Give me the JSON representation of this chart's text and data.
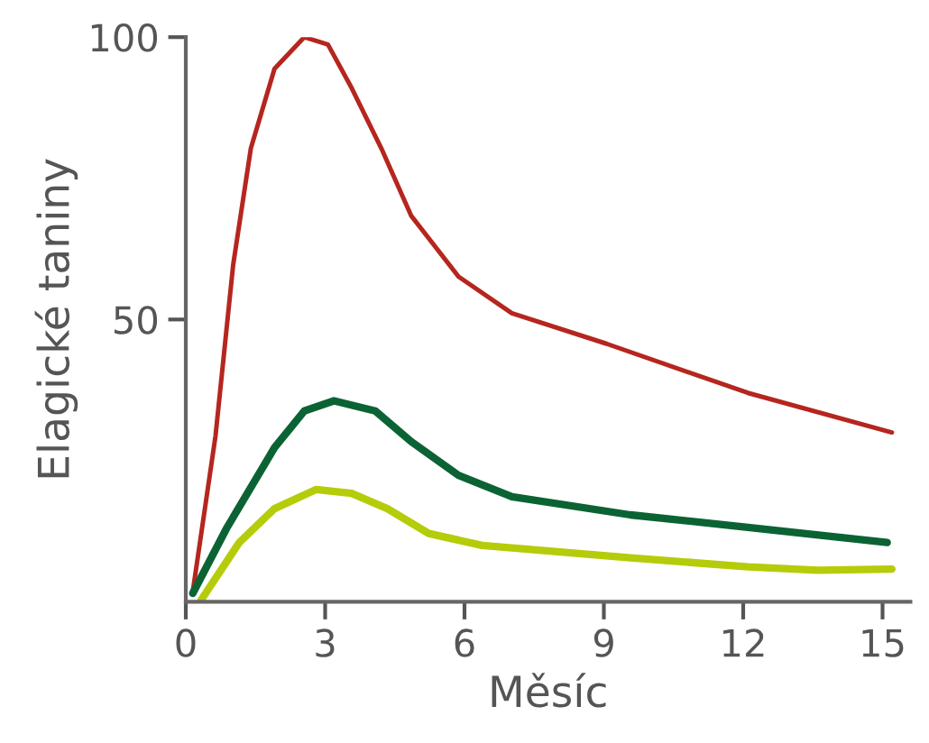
{
  "chart_data": {
    "type": "line",
    "xlabel": "Měsíc",
    "ylabel": "Elagické taniny",
    "xlim": [
      0,
      15.6
    ],
    "ylim": [
      0,
      100
    ],
    "xticks": [
      0,
      3,
      6,
      9,
      12,
      15
    ],
    "yticks": [
      50,
      100
    ],
    "grid": false,
    "marker": "none",
    "line_style": "solid",
    "series": [
      {
        "color": "#b5261e",
        "x": [
          0.15,
          0.64,
          1.02,
          1.4,
          1.91,
          2.55,
          3.06,
          3.57,
          4.21,
          4.85,
          5.87,
          7.02,
          9.06,
          12.1,
          15.2
        ],
        "values": [
          1.8,
          29.4,
          59.7,
          80.3,
          94.4,
          100,
          98.7,
          91,
          80.3,
          68.4,
          57.6,
          51.1,
          45.7,
          37,
          30
        ]
      },
      {
        "color": "#0b6334",
        "x": [
          0.15,
          0.89,
          1.91,
          2.55,
          3.19,
          4.08,
          4.85,
          5.87,
          7.02,
          9.57,
          12.1,
          15.1
        ],
        "values": [
          1.5,
          13.2,
          27.3,
          33.8,
          35.6,
          33.8,
          28.4,
          22.4,
          18.6,
          15.4,
          13.2,
          10.5
        ]
      },
      {
        "color": "#b5cc0a",
        "x": [
          0.32,
          1.15,
          1.91,
          2.81,
          3.57,
          4.34,
          5.23,
          6.38,
          9.57,
          12.1,
          13.6,
          15.2
        ],
        "values": [
          0.2,
          10.5,
          16.5,
          19.9,
          19.2,
          16.5,
          12.1,
          10,
          7.8,
          6.2,
          5.6,
          5.8
        ]
      }
    ]
  }
}
